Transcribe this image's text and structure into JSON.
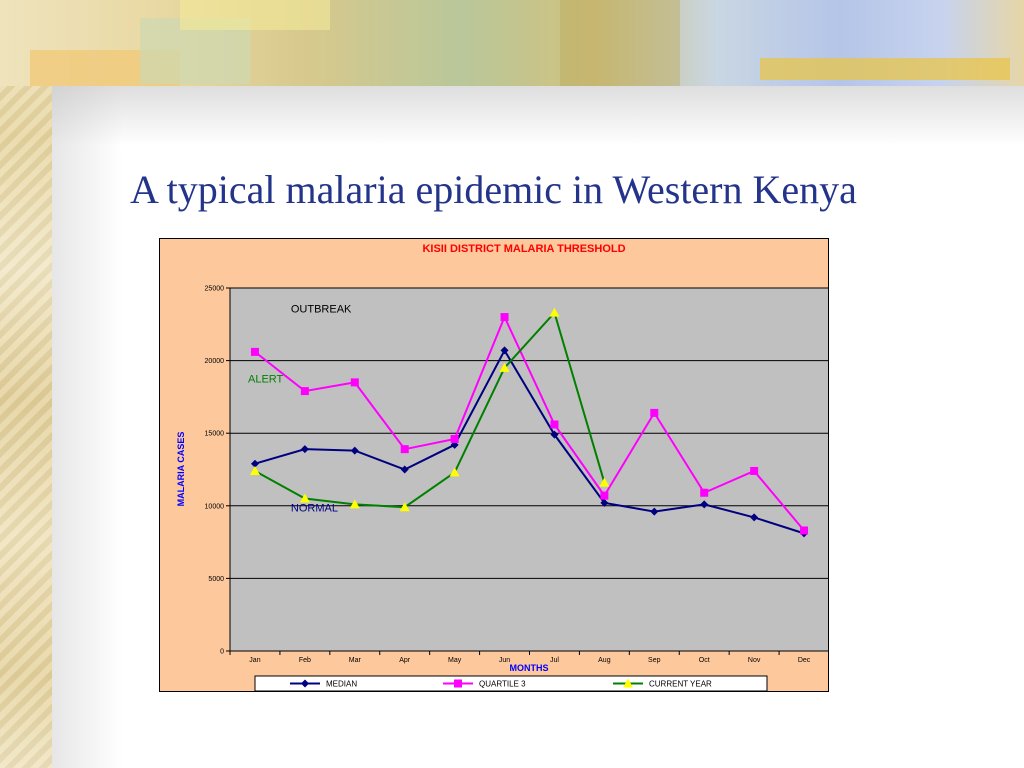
{
  "slide": {
    "title": "A typical malaria epidemic in Western Kenya"
  },
  "colors": {
    "title": "#23348a",
    "chart_background": "#fcc89c",
    "plot_area": "#c0c0c0",
    "median": "#000080",
    "quartile3": "#ff00ff",
    "current_year": "#008000",
    "current_year_marker": "#ffff00",
    "chart_title": "#ff0000",
    "axis_label": "#0000ff"
  },
  "chart_data": {
    "type": "line",
    "title": "KISII DISTRICT MALARIA THRESHOLD",
    "xlabel": "MONTHS",
    "ylabel": "MALARIA CASES",
    "categories": [
      "Jan",
      "Feb",
      "Mar",
      "Apr",
      "May",
      "Jun",
      "Jul",
      "Aug",
      "Sep",
      "Oct",
      "Nov",
      "Dec"
    ],
    "ylim": [
      0,
      25000
    ],
    "yticks": [
      0,
      5000,
      10000,
      15000,
      20000,
      25000
    ],
    "grid": true,
    "legend_position": "bottom",
    "series": [
      {
        "name": "MEDIAN",
        "marker": "diamond",
        "values": [
          12900,
          13900,
          13800,
          12500,
          14200,
          20700,
          14900,
          10200,
          9600,
          10100,
          9200,
          8100
        ]
      },
      {
        "name": "QUARTILE 3",
        "marker": "square",
        "values": [
          20600,
          17900,
          18500,
          13900,
          14600,
          23000,
          15600,
          10700,
          16400,
          10900,
          12400,
          8300
        ]
      },
      {
        "name": "CURRENT YEAR",
        "marker": "triangle",
        "values": [
          12400,
          10500,
          10100,
          9900,
          12300,
          19500,
          23300,
          11600,
          null,
          null,
          null,
          null
        ]
      }
    ],
    "annotations": [
      {
        "text": "OUTBREAK",
        "x": "Feb",
        "y": 23300
      },
      {
        "text": "ALERT",
        "x": "Jan",
        "y": 18500
      },
      {
        "text": "NORMAL",
        "x": "Feb",
        "y": 9600
      }
    ]
  }
}
